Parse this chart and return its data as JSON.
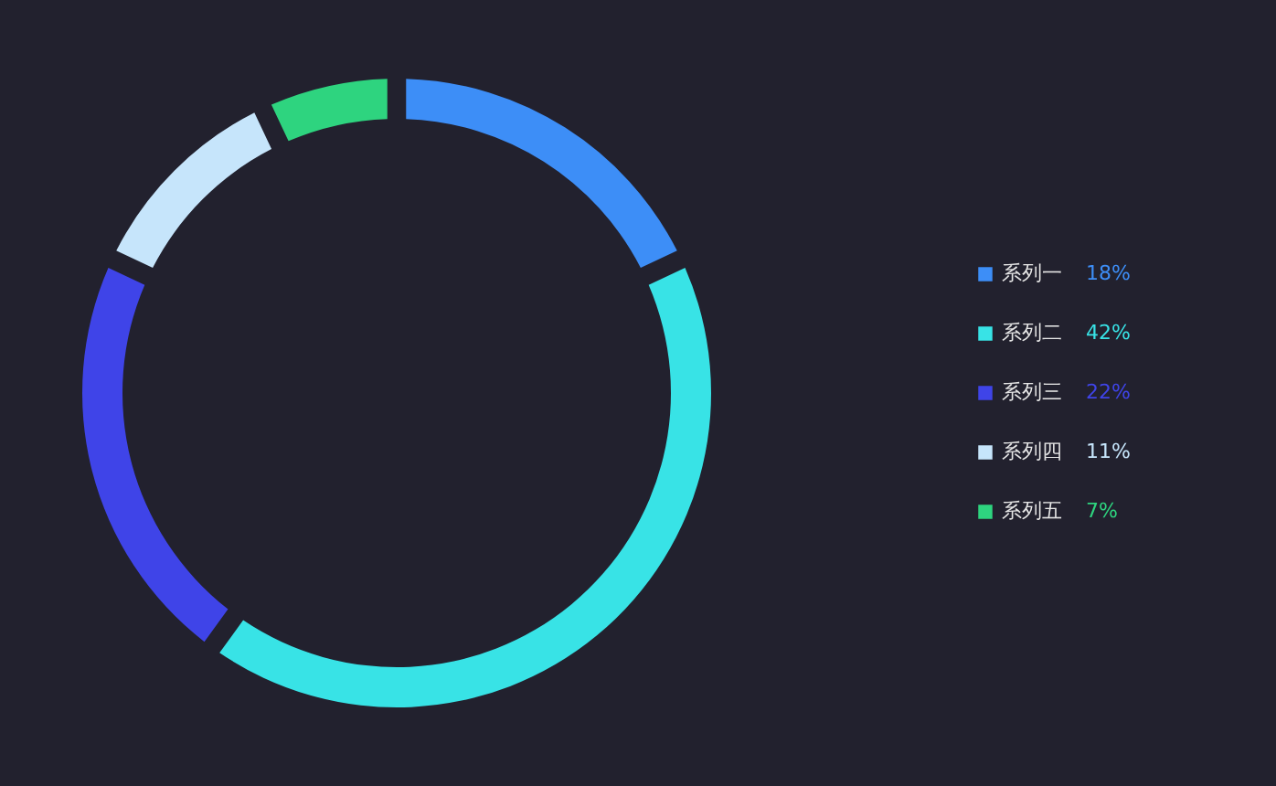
{
  "chart_data": {
    "type": "donut",
    "categories": [
      "系列一",
      "系列二",
      "系列三",
      "系列四",
      "系列五"
    ],
    "values": [
      18,
      42,
      22,
      11,
      7
    ],
    "colors": [
      "#3d8ef7",
      "#38e3e6",
      "#3f44e8",
      "#c6e5fb",
      "#2ed47f"
    ],
    "value_labels": [
      "18%",
      "42%",
      "22%",
      "11%",
      "7%"
    ],
    "legend": "right"
  }
}
